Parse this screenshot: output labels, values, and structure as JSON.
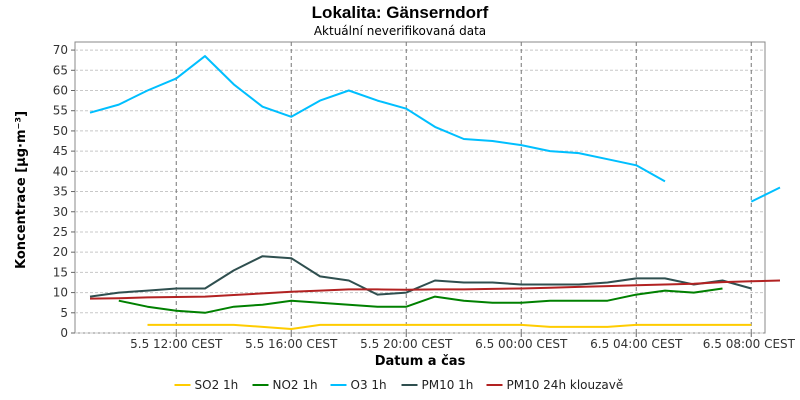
{
  "chart_data": {
    "type": "line",
    "title": "Lokalita: Gänserndorf",
    "subtitle": "Aktuální neverifikovaná data",
    "xlabel": "Datum a čas",
    "ylabel": "Koncentrace [µg·m⁻³]",
    "ylim": [
      0,
      72
    ],
    "yticks": [
      0,
      5,
      10,
      15,
      20,
      25,
      30,
      35,
      40,
      45,
      50,
      55,
      60,
      65,
      70
    ],
    "x": [
      "5.5 09:00",
      "5.5 10:00",
      "5.5 11:00",
      "5.5 12:00",
      "5.5 13:00",
      "5.5 14:00",
      "5.5 15:00",
      "5.5 16:00",
      "5.5 17:00",
      "5.5 18:00",
      "5.5 19:00",
      "5.5 20:00",
      "5.5 21:00",
      "5.5 22:00",
      "5.5 23:00",
      "6.5 00:00",
      "6.5 01:00",
      "6.5 02:00",
      "6.5 03:00",
      "6.5 04:00",
      "6.5 05:00",
      "6.5 06:00",
      "6.5 07:00",
      "6.5 08:00",
      "6.5 09:00"
    ],
    "xticks": [
      "5.5 12:00 CEST",
      "5.5 16:00 CEST",
      "5.5 20:00 CEST",
      "6.5 00:00 CEST",
      "6.5 04:00 CEST",
      "6.5 08:00 CEST"
    ],
    "grid": true,
    "legend_position": "bottom",
    "series": [
      {
        "name": "SO2 1h",
        "color": "#ffcc00",
        "values": [
          null,
          null,
          2,
          2,
          2,
          2,
          1.5,
          1,
          2,
          2,
          2,
          2,
          2,
          2,
          2,
          2,
          1.5,
          1.5,
          1.5,
          2,
          2,
          2,
          2,
          2,
          null
        ]
      },
      {
        "name": "NO2 1h",
        "color": "#008000",
        "values": [
          null,
          8,
          6.5,
          5.5,
          5,
          6.5,
          7,
          8,
          7.5,
          7,
          6.5,
          6.5,
          9,
          8,
          7.5,
          7.5,
          8,
          8,
          8,
          9.5,
          10.5,
          10,
          11,
          null,
          null
        ]
      },
      {
        "name": "O3 1h",
        "color": "#00bfff",
        "values": [
          54.5,
          56.5,
          60,
          63,
          68.5,
          61.5,
          56,
          53.5,
          57.5,
          60,
          57.5,
          55.5,
          51,
          48,
          47.5,
          46.5,
          45,
          44.5,
          43,
          41.5,
          37.5,
          null,
          null,
          32.5,
          36
        ]
      },
      {
        "name": "PM10 1h",
        "color": "#2f4f4f",
        "values": [
          9,
          10,
          10.5,
          11,
          11,
          15.5,
          19,
          18.5,
          14,
          13,
          9.5,
          10,
          13,
          12.5,
          12.5,
          12,
          12,
          12,
          12.5,
          13.5,
          13.5,
          12,
          13,
          11,
          null
        ]
      },
      {
        "name": "PM10 24h klouzavě",
        "color": "#b22222",
        "values": [
          8.5,
          8.6,
          8.8,
          8.9,
          9,
          9.4,
          9.8,
          10.2,
          10.5,
          10.8,
          10.8,
          10.7,
          10.8,
          10.8,
          10.9,
          11,
          11.2,
          11.4,
          11.6,
          11.8,
          12,
          12.2,
          12.6,
          12.8,
          13
        ]
      }
    ]
  }
}
